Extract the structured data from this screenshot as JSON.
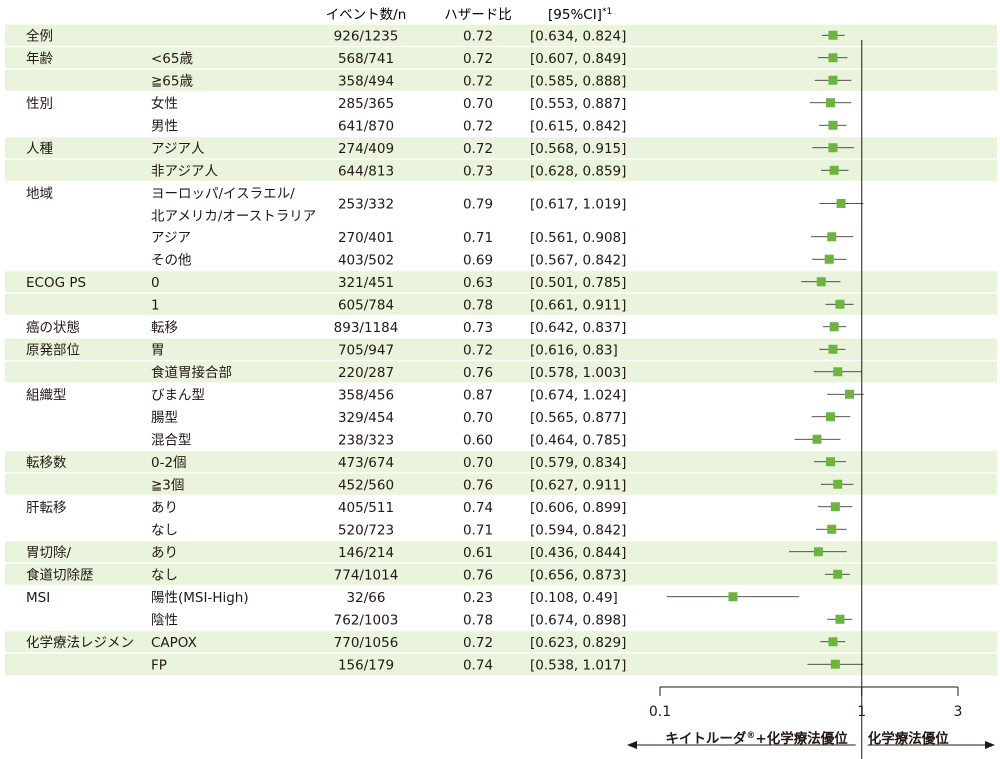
{
  "header": {
    "events": "イベント数/n",
    "hr": "ハザード比",
    "ci": "[95%CI]",
    "ci_sup": "*1"
  },
  "chart_data": {
    "type": "forest",
    "x_scale": "log",
    "xlim": [
      0.1,
      3
    ],
    "reference": 1,
    "axis_ticks": [
      {
        "value": 0.1,
        "label": "0.1"
      },
      {
        "value": 1,
        "label": "1"
      },
      {
        "value": 3,
        "label": "3"
      }
    ],
    "favor_left": "キイトルーダ®+化学療法優位",
    "favor_right": "化学療法優位",
    "point_color": "#6cb33f",
    "band_color": "#eaf4dc",
    "rows": [
      {
        "group": "全例",
        "sub": "",
        "events": "926/1235",
        "hr": 0.72,
        "hr_label": "0.72",
        "ci": [
          0.634,
          0.824
        ],
        "ci_label": "[0.634, 0.824]",
        "band": true
      },
      {
        "group": "年齢",
        "sub": "<65歳",
        "events": "568/741",
        "hr": 0.72,
        "hr_label": "0.72",
        "ci": [
          0.607,
          0.849
        ],
        "ci_label": "[0.607, 0.849]",
        "band": true
      },
      {
        "group": "",
        "sub": "≧65歳",
        "events": "358/494",
        "hr": 0.72,
        "hr_label": "0.72",
        "ci": [
          0.585,
          0.888
        ],
        "ci_label": "[0.585, 0.888]",
        "band": true
      },
      {
        "group": "性別",
        "sub": "女性",
        "events": "285/365",
        "hr": 0.7,
        "hr_label": "0.70",
        "ci": [
          0.553,
          0.887
        ],
        "ci_label": "[0.553, 0.887]",
        "band": false
      },
      {
        "group": "",
        "sub": "男性",
        "events": "641/870",
        "hr": 0.72,
        "hr_label": "0.72",
        "ci": [
          0.615,
          0.842
        ],
        "ci_label": "[0.615, 0.842]",
        "band": false
      },
      {
        "group": "人種",
        "sub": "アジア人",
        "events": "274/409",
        "hr": 0.72,
        "hr_label": "0.72",
        "ci": [
          0.568,
          0.915
        ],
        "ci_label": "[0.568, 0.915]",
        "band": true
      },
      {
        "group": "",
        "sub": "非アジア人",
        "events": "644/813",
        "hr": 0.73,
        "hr_label": "0.73",
        "ci": [
          0.628,
          0.859
        ],
        "ci_label": "[0.628, 0.859]",
        "band": true
      },
      {
        "group": "地域",
        "sub": "ヨーロッパ/イスラエル/",
        "sub2": "北アメリカ/オーストラリア",
        "events": "253/332",
        "hr": 0.79,
        "hr_label": "0.79",
        "ci": [
          0.617,
          1.019
        ],
        "ci_label": "[0.617, 1.019]",
        "band": false,
        "tall": true
      },
      {
        "group": "",
        "sub": "アジア",
        "events": "270/401",
        "hr": 0.71,
        "hr_label": "0.71",
        "ci": [
          0.561,
          0.908
        ],
        "ci_label": "[0.561, 0.908]",
        "band": false
      },
      {
        "group": "",
        "sub": "その他",
        "events": "403/502",
        "hr": 0.69,
        "hr_label": "0.69",
        "ci": [
          0.567,
          0.842
        ],
        "ci_label": "[0.567, 0.842]",
        "band": false
      },
      {
        "group": "ECOG PS",
        "sub": "0",
        "events": "321/451",
        "hr": 0.63,
        "hr_label": "0.63",
        "ci": [
          0.501,
          0.785
        ],
        "ci_label": "[0.501, 0.785]",
        "band": true
      },
      {
        "group": "",
        "sub": "1",
        "events": "605/784",
        "hr": 0.78,
        "hr_label": "0.78",
        "ci": [
          0.661,
          0.911
        ],
        "ci_label": "[0.661, 0.911]",
        "band": true
      },
      {
        "group": "癌の状態",
        "sub": "転移",
        "events": "893/1184",
        "hr": 0.73,
        "hr_label": "0.73",
        "ci": [
          0.642,
          0.837
        ],
        "ci_label": "[0.642, 0.837]",
        "band": false
      },
      {
        "group": "原発部位",
        "sub": "胃",
        "events": "705/947",
        "hr": 0.72,
        "hr_label": "0.72",
        "ci": [
          0.616,
          0.83
        ],
        "ci_label": "[0.616, 0.83]",
        "band": true
      },
      {
        "group": "",
        "sub": "食道胃接合部",
        "events": "220/287",
        "hr": 0.76,
        "hr_label": "0.76",
        "ci": [
          0.578,
          1.003
        ],
        "ci_label": "[0.578, 1.003]",
        "band": true
      },
      {
        "group": "組織型",
        "sub": "びまん型",
        "events": "358/456",
        "hr": 0.87,
        "hr_label": "0.87",
        "ci": [
          0.674,
          1.024
        ],
        "ci_label": "[0.674, 1.024]",
        "band": false
      },
      {
        "group": "",
        "sub": "腸型",
        "events": "329/454",
        "hr": 0.7,
        "hr_label": "0.70",
        "ci": [
          0.565,
          0.877
        ],
        "ci_label": "[0.565, 0.877]",
        "band": false
      },
      {
        "group": "",
        "sub": "混合型",
        "events": "238/323",
        "hr": 0.6,
        "hr_label": "0.60",
        "ci": [
          0.464,
          0.785
        ],
        "ci_label": "[0.464, 0.785]",
        "band": false
      },
      {
        "group": "転移数",
        "sub": "0-2個",
        "events": "473/674",
        "hr": 0.7,
        "hr_label": "0.70",
        "ci": [
          0.579,
          0.834
        ],
        "ci_label": "[0.579, 0.834]",
        "band": true
      },
      {
        "group": "",
        "sub": "≧3個",
        "events": "452/560",
        "hr": 0.76,
        "hr_label": "0.76",
        "ci": [
          0.627,
          0.911
        ],
        "ci_label": "[0.627, 0.911]",
        "band": true
      },
      {
        "group": "肝転移",
        "sub": "あり",
        "events": "405/511",
        "hr": 0.74,
        "hr_label": "0.74",
        "ci": [
          0.606,
          0.899
        ],
        "ci_label": "[0.606, 0.899]",
        "band": false
      },
      {
        "group": "",
        "sub": "なし",
        "events": "520/723",
        "hr": 0.71,
        "hr_label": "0.71",
        "ci": [
          0.594,
          0.842
        ],
        "ci_label": "[0.594, 0.842]",
        "band": false
      },
      {
        "group": "胃切除/",
        "sub": "あり",
        "events": "146/214",
        "hr": 0.61,
        "hr_label": "0.61",
        "ci": [
          0.436,
          0.844
        ],
        "ci_label": "[0.436, 0.844]",
        "band": true
      },
      {
        "group": "食道切除歴",
        "sub": "なし",
        "events": "774/1014",
        "hr": 0.76,
        "hr_label": "0.76",
        "ci": [
          0.656,
          0.873
        ],
        "ci_label": "[0.656, 0.873]",
        "band": true
      },
      {
        "group": "MSI",
        "sub": "陽性(MSI-High)",
        "events": "32/66",
        "hr": 0.23,
        "hr_label": "0.23",
        "ci": [
          0.108,
          0.49
        ],
        "ci_label": "[0.108, 0.49]",
        "band": false
      },
      {
        "group": "",
        "sub": "陰性",
        "events": "762/1003",
        "hr": 0.78,
        "hr_label": "0.78",
        "ci": [
          0.674,
          0.898
        ],
        "ci_label": "[0.674, 0.898]",
        "band": false
      },
      {
        "group": "化学療法レジメン",
        "sub": "CAPOX",
        "events": "770/1056",
        "hr": 0.72,
        "hr_label": "0.72",
        "ci": [
          0.623,
          0.829
        ],
        "ci_label": "[0.623, 0.829]",
        "band": true
      },
      {
        "group": "",
        "sub": "FP",
        "events": "156/179",
        "hr": 0.74,
        "hr_label": "0.74",
        "ci": [
          0.538,
          1.017
        ],
        "ci_label": "[0.538, 1.017]",
        "band": true
      }
    ]
  }
}
